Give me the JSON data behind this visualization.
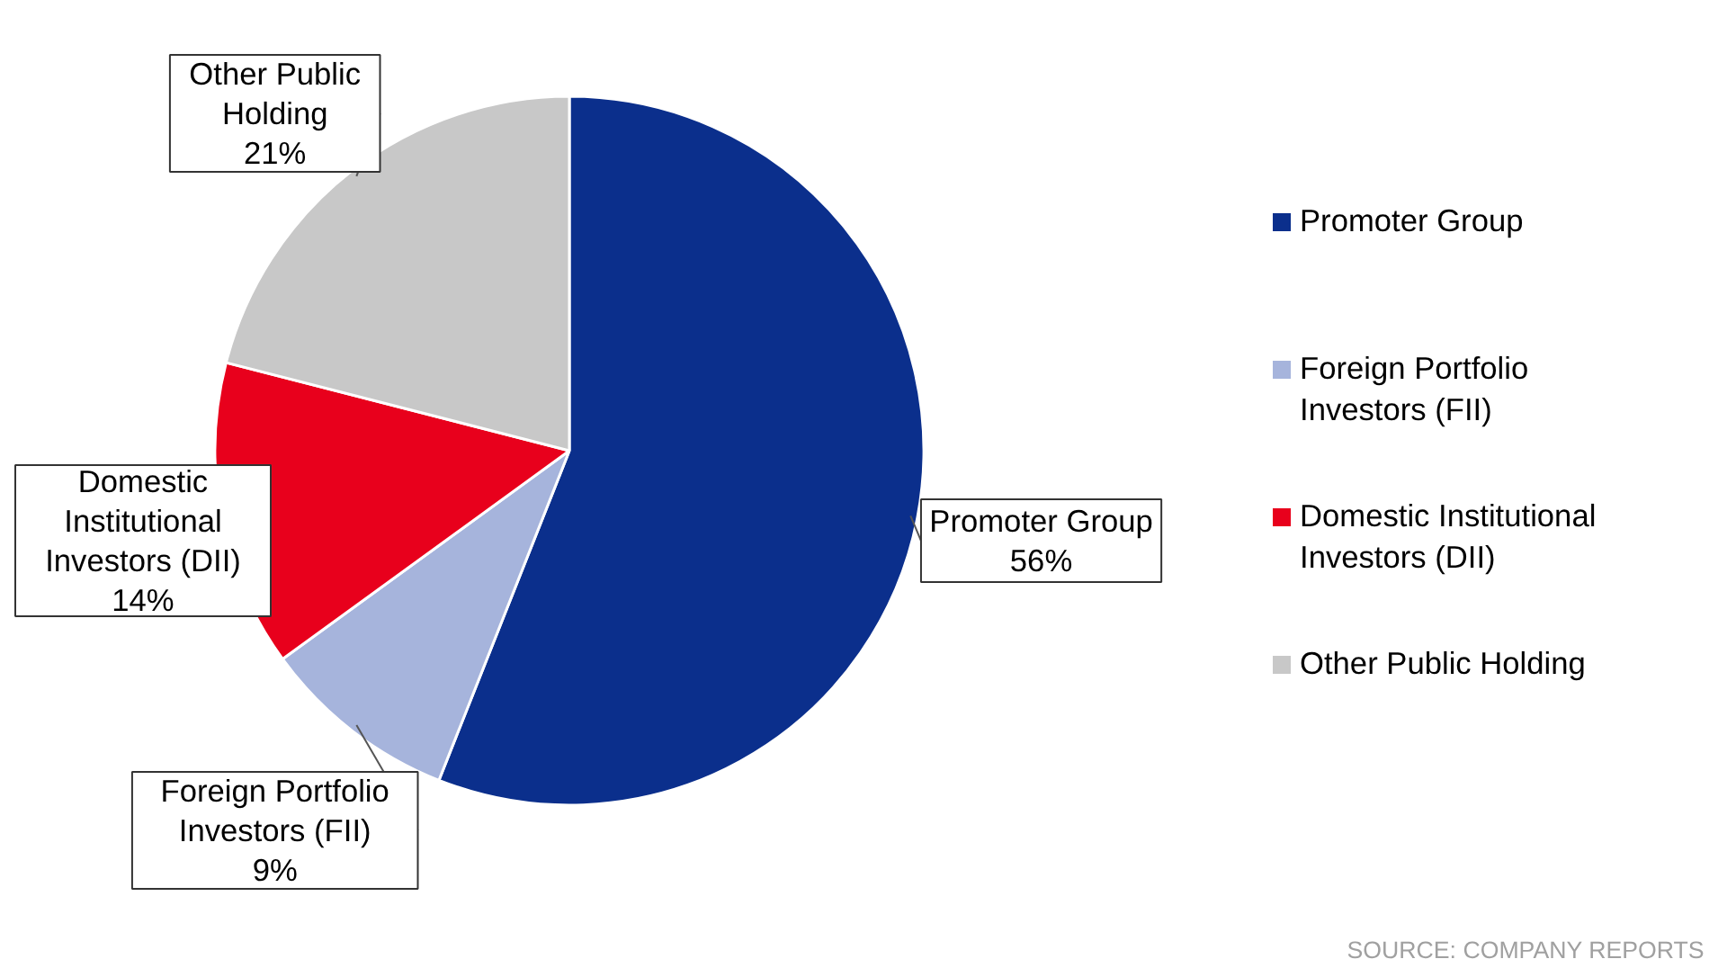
{
  "chart_data": {
    "type": "pie",
    "categories": [
      "Promoter Group",
      "Foreign Portfolio Investors (FII)",
      "Domestic Institutional Investors (DII)",
      "Other Public Holding"
    ],
    "values": [
      56,
      9,
      14,
      21
    ],
    "colors": [
      "#0b2f8c",
      "#a6b4dc",
      "#e8001c",
      "#c8c8c8"
    ],
    "value_labels": [
      "Promoter Group\n56%",
      "Foreign Portfolio\nInvestors (FII)\n9%",
      "Domestic\nInstitutional\nInvestors (DII)\n14%",
      "Other Public\nHolding\n21%"
    ],
    "legend": "right",
    "annotations": [
      "SOURCE: COMPANY REPORTS"
    ]
  }
}
